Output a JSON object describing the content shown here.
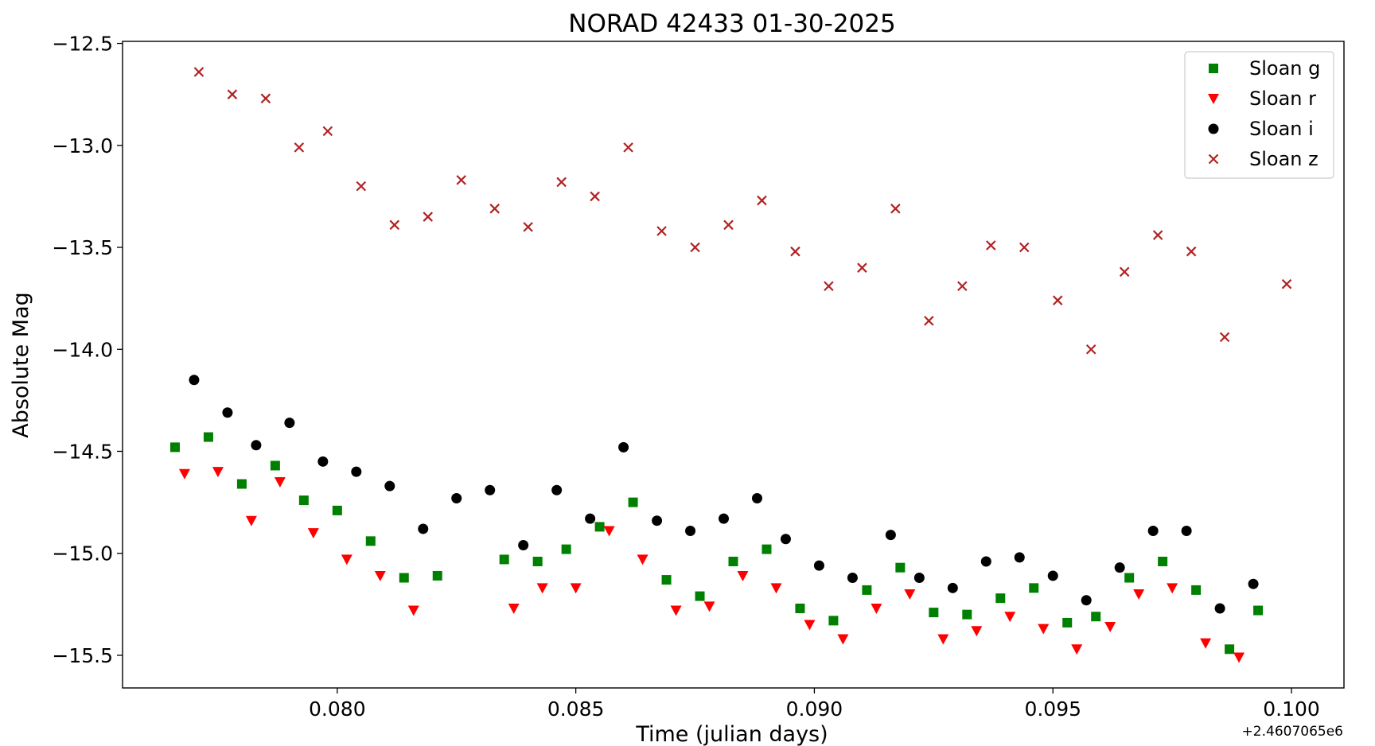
{
  "chart_data": {
    "type": "scatter",
    "title": "NORAD 42433 01-30-2025",
    "xlabel": "Time (julian days)",
    "ylabel": "Absolute Mag",
    "x_offset_text": "+2.4607065e6",
    "xlim": [
      0.0755,
      0.1011
    ],
    "ylim": [
      -15.66,
      -12.49
    ],
    "y_inverted": false,
    "x_ticks": [
      0.08,
      0.085,
      0.09,
      0.095,
      0.1
    ],
    "x_tick_labels": [
      "0.080",
      "0.085",
      "0.090",
      "0.095",
      "0.100"
    ],
    "y_ticks": [
      -12.5,
      -13.0,
      -13.5,
      -14.0,
      -14.5,
      -15.0,
      -15.5
    ],
    "y_tick_labels": [
      "−12.5",
      "−13.0",
      "−13.5",
      "−14.0",
      "−14.5",
      "−15.0",
      "−15.5"
    ],
    "grid": false,
    "legend_position": "top-right",
    "series": [
      {
        "name": "Sloan g",
        "marker": "square",
        "color": "#008000",
        "x": [
          0.0766,
          0.0773,
          0.078,
          0.0787,
          0.0793,
          0.08,
          0.0807,
          0.0814,
          0.0821,
          0.0835,
          0.0842,
          0.0848,
          0.0855,
          0.0862,
          0.0869,
          0.0876,
          0.0883,
          0.089,
          0.0897,
          0.0904,
          0.0911,
          0.0918,
          0.0925,
          0.0932,
          0.0939,
          0.0946,
          0.0953,
          0.0959,
          0.0966,
          0.0973,
          0.098,
          0.0987,
          0.0993
        ],
        "y": [
          -14.48,
          -14.43,
          -14.66,
          -14.57,
          -14.74,
          -14.79,
          -14.94,
          -15.12,
          -15.11,
          -15.03,
          -15.04,
          -14.98,
          -14.87,
          -14.75,
          -15.13,
          -15.21,
          -15.04,
          -14.98,
          -15.27,
          -15.33,
          -15.18,
          -15.07,
          -15.29,
          -15.3,
          -15.22,
          -15.17,
          -15.34,
          -15.31,
          -15.12,
          -15.04,
          -15.18,
          -15.47,
          -15.28
        ]
      },
      {
        "name": "Sloan r",
        "marker": "triangle-down",
        "color": "#ff0000",
        "x": [
          0.0768,
          0.0775,
          0.0782,
          0.0788,
          0.0795,
          0.0802,
          0.0809,
          0.0816,
          0.0837,
          0.0843,
          0.085,
          0.0857,
          0.0864,
          0.0871,
          0.0878,
          0.0885,
          0.0892,
          0.0899,
          0.0906,
          0.0913,
          0.092,
          0.0927,
          0.0934,
          0.0941,
          0.0948,
          0.0955,
          0.0962,
          0.0968,
          0.0975,
          0.0982,
          0.0989
        ],
        "y": [
          -14.61,
          -14.6,
          -14.84,
          -14.65,
          -14.9,
          -15.03,
          -15.11,
          -15.28,
          -15.27,
          -15.17,
          -15.17,
          -14.89,
          -15.03,
          -15.28,
          -15.26,
          -15.11,
          -15.17,
          -15.35,
          -15.42,
          -15.27,
          -15.2,
          -15.42,
          -15.38,
          -15.31,
          -15.37,
          -15.47,
          -15.36,
          -15.2,
          -15.17,
          -15.44,
          -15.51
        ]
      },
      {
        "name": "Sloan i",
        "marker": "circle",
        "color": "#000000",
        "x": [
          0.077,
          0.0777,
          0.0783,
          0.079,
          0.0797,
          0.0804,
          0.0811,
          0.0818,
          0.0825,
          0.0832,
          0.0839,
          0.0846,
          0.0853,
          0.086,
          0.0867,
          0.0874,
          0.0881,
          0.0888,
          0.0894,
          0.0901,
          0.0908,
          0.0916,
          0.0922,
          0.0929,
          0.0936,
          0.0943,
          0.095,
          0.0957,
          0.0964,
          0.0971,
          0.0978,
          0.0985,
          0.0992
        ],
        "y": [
          -14.15,
          -14.31,
          -14.47,
          -14.36,
          -14.55,
          -14.6,
          -14.67,
          -14.88,
          -14.73,
          -14.69,
          -14.96,
          -14.69,
          -14.83,
          -14.48,
          -14.84,
          -14.89,
          -14.83,
          -14.73,
          -14.93,
          -15.06,
          -15.12,
          -14.91,
          -15.12,
          -15.17,
          -15.04,
          -15.02,
          -15.11,
          -15.23,
          -15.07,
          -14.89,
          -14.89,
          -15.27,
          -15.15
        ]
      },
      {
        "name": "Sloan z",
        "marker": "x",
        "color": "#b22222",
        "x": [
          0.0771,
          0.0778,
          0.0785,
          0.0792,
          0.0798,
          0.0805,
          0.0812,
          0.0819,
          0.0826,
          0.0833,
          0.084,
          0.0847,
          0.0854,
          0.0861,
          0.0868,
          0.0875,
          0.0882,
          0.0889,
          0.0896,
          0.0903,
          0.091,
          0.0917,
          0.0924,
          0.0931,
          0.0937,
          0.0944,
          0.0951,
          0.0958,
          0.0965,
          0.0972,
          0.0979,
          0.0986,
          0.0999
        ],
        "y": [
          -12.64,
          -12.75,
          -12.77,
          -13.01,
          -12.93,
          -13.2,
          -13.39,
          -13.35,
          -13.17,
          -13.31,
          -13.4,
          -13.18,
          -13.25,
          -13.01,
          -13.42,
          -13.5,
          -13.39,
          -13.27,
          -13.52,
          -13.69,
          -13.6,
          -13.31,
          -13.86,
          -13.69,
          -13.49,
          -13.5,
          -13.76,
          -14.0,
          -13.62,
          -13.44,
          -13.52,
          -13.94,
          -13.68
        ]
      }
    ]
  }
}
